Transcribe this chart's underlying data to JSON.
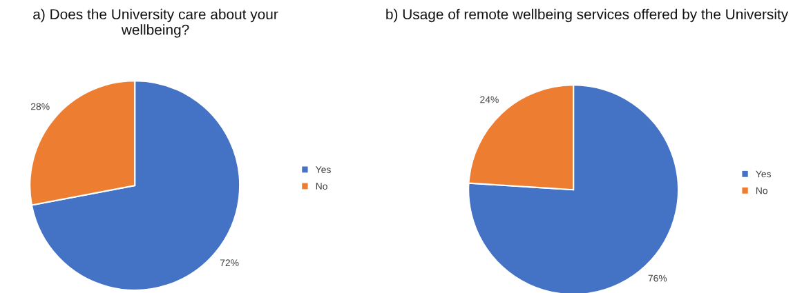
{
  "chart_data": [
    {
      "type": "pie",
      "title": "a) Does the University care about your wellbeing?",
      "categories": [
        "Yes",
        "No"
      ],
      "values": [
        72,
        28
      ],
      "colors": [
        "#4472c4",
        "#ed7d31"
      ],
      "value_labels": [
        "72%",
        "28%"
      ],
      "legend": "right"
    },
    {
      "type": "pie",
      "title": "b) Usage of remote wellbeing services offered by the University",
      "categories": [
        "Yes",
        "No"
      ],
      "values": [
        76,
        24
      ],
      "colors": [
        "#4472c4",
        "#ed7d31"
      ],
      "value_labels": [
        "76%",
        "24%"
      ],
      "legend": "right"
    }
  ]
}
